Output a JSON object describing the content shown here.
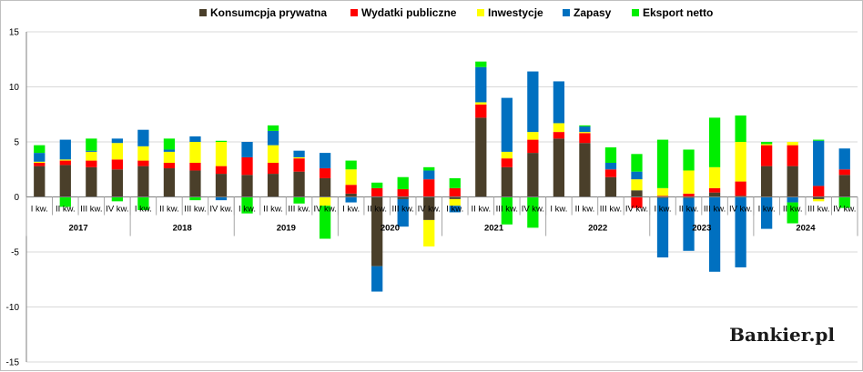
{
  "chart_data": {
    "type": "bar",
    "stacked": true,
    "title": "",
    "ylim": [
      -15,
      15
    ],
    "yticks": [
      -15,
      -10,
      -5,
      0,
      5,
      10,
      15
    ],
    "grid": true,
    "legend_position": "top",
    "brand": "Bankier.pl",
    "years": [
      "2017",
      "2018",
      "2019",
      "2020",
      "2021",
      "2022",
      "2023",
      "2024"
    ],
    "quarter_labels": [
      "I kw.",
      "II kw.",
      "III kw.",
      "IV kw."
    ],
    "categories": [
      "I kw. 2017",
      "II kw. 2017",
      "III kw. 2017",
      "IV kw. 2017",
      "I kw. 2018",
      "II kw. 2018",
      "III kw. 2018",
      "IV kw. 2018",
      "I kw. 2019",
      "II kw. 2019",
      "III kw. 2019",
      "IV kw. 2019",
      "I kw. 2020",
      "II kw. 2020",
      "III kw. 2020",
      "IV kw. 2020",
      "I kw. 2021",
      "II kw. 2021",
      "III kw. 2021",
      "IV kw. 2021",
      "I kw. 2022",
      "II kw. 2022",
      "III kw. 2022",
      "IV kw. 2022",
      "I kw. 2023",
      "II kw. 2023",
      "III kw. 2023",
      "IV kw. 2023",
      "I kw. 2024",
      "II kw. 2024",
      "III kw. 2024",
      "IV kw. 2024"
    ],
    "series": [
      {
        "name": "Konsumcpja prywatna",
        "color": "#4a3f2a",
        "values": [
          2.8,
          2.9,
          2.7,
          2.5,
          2.8,
          2.6,
          2.4,
          2.1,
          2.0,
          2.1,
          2.3,
          1.7,
          0.3,
          -6.3,
          -0.2,
          -2.1,
          -0.2,
          7.2,
          2.7,
          4.0,
          5.3,
          4.9,
          1.8,
          0.6,
          -0.1,
          -0.1,
          0.4,
          0.1,
          2.8,
          2.8,
          -0.2,
          2.0
        ]
      },
      {
        "name": "Wydatki publiczne",
        "color": "#ff0000",
        "values": [
          0.3,
          0.4,
          0.6,
          0.9,
          0.5,
          0.5,
          0.7,
          0.7,
          1.6,
          1.0,
          1.2,
          0.9,
          0.8,
          0.8,
          0.7,
          1.6,
          0.8,
          1.2,
          0.8,
          1.2,
          0.6,
          0.9,
          0.7,
          -1.0,
          0.1,
          0.3,
          0.4,
          1.3,
          1.9,
          1.9,
          1.0,
          0.5
        ]
      },
      {
        "name": "Inwestycje",
        "color": "#ffff00",
        "values": [
          0.1,
          0.1,
          0.8,
          1.5,
          1.3,
          1.0,
          1.9,
          2.2,
          0.0,
          1.6,
          0.1,
          -0.8,
          1.4,
          0.0,
          0.0,
          -2.4,
          -0.6,
          0.2,
          0.6,
          0.7,
          0.8,
          0.1,
          0.0,
          1.0,
          0.7,
          2.1,
          1.9,
          3.6,
          0.1,
          0.3,
          -0.2,
          0.0
        ]
      },
      {
        "name": "Zapasy",
        "color": "#0070c0",
        "values": [
          0.8,
          1.8,
          0.1,
          0.4,
          1.5,
          0.2,
          0.5,
          -0.3,
          1.4,
          1.3,
          0.6,
          1.4,
          -0.5,
          -2.3,
          -2.5,
          0.8,
          -0.6,
          3.2,
          4.9,
          5.5,
          3.8,
          0.5,
          0.6,
          0.7,
          -5.4,
          -4.8,
          -6.8,
          -6.4,
          -2.9,
          -0.5,
          4.1,
          1.9
        ]
      },
      {
        "name": "Eksport netto",
        "color": "#00ee00",
        "values": [
          0.7,
          -0.9,
          1.1,
          -0.4,
          -1.2,
          1.0,
          -0.3,
          0.1,
          -1.5,
          0.5,
          -0.6,
          -3.0,
          0.8,
          0.5,
          1.1,
          0.3,
          0.9,
          0.5,
          -2.5,
          -2.8,
          0.0,
          0.1,
          1.4,
          1.6,
          4.4,
          1.9,
          4.5,
          2.4,
          0.2,
          -1.9,
          0.1,
          -1.0
        ]
      }
    ]
  }
}
